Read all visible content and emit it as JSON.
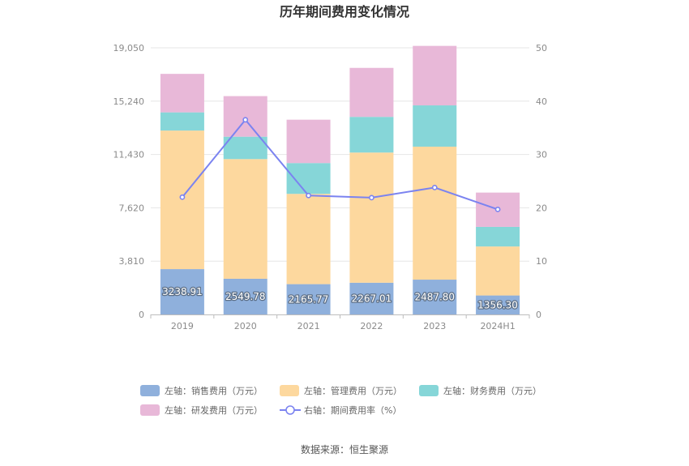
{
  "chart_data": {
    "type": "bar",
    "title": "历年期间费用变化情况",
    "categories": [
      "2019",
      "2020",
      "2021",
      "2022",
      "2023",
      "2024H1"
    ],
    "left_axis": {
      "ylim": [
        0,
        19050
      ],
      "ticks": [
        "0",
        "3,810",
        "7,620",
        "11,430",
        "15,240",
        "19,050"
      ]
    },
    "right_axis": {
      "ylim": [
        0,
        50
      ],
      "ticks": [
        "0",
        "10",
        "20",
        "30",
        "40",
        "50"
      ]
    },
    "series": [
      {
        "name": "左轴：销售费用（万元）",
        "kind": "bar",
        "axis": "left",
        "color": "#8fb0dc",
        "values": [
          3238.91,
          2549.78,
          2165.77,
          2267.01,
          2487.8,
          1356.3
        ],
        "labels": [
          "3238.91",
          "2549.78",
          "2165.77",
          "2267.01",
          "2487.80",
          "1356.30"
        ]
      },
      {
        "name": "左轴：管理费用（万元）",
        "kind": "bar",
        "axis": "left",
        "color": "#fdd89e",
        "values": [
          9900,
          8550,
          6450,
          9300,
          9500,
          3500
        ]
      },
      {
        "name": "左轴：财务费用（万元）",
        "kind": "bar",
        "axis": "left",
        "color": "#86d6d8",
        "values": [
          1300,
          1600,
          2200,
          2550,
          2950,
          1400
        ]
      },
      {
        "name": "左轴：研发费用（万元）",
        "kind": "bar",
        "axis": "left",
        "color": "#e8b8d8",
        "values": [
          2750,
          2900,
          3100,
          3500,
          4250,
          2450
        ]
      },
      {
        "name": "右轴：期间费用率（%）",
        "kind": "line",
        "axis": "right",
        "color": "#7b83f0",
        "values": [
          22.0,
          36.5,
          22.3,
          21.9,
          23.8,
          19.7
        ]
      }
    ],
    "legend_position": "bottom",
    "grid": true
  },
  "source_label": "数据来源：恒生聚源"
}
